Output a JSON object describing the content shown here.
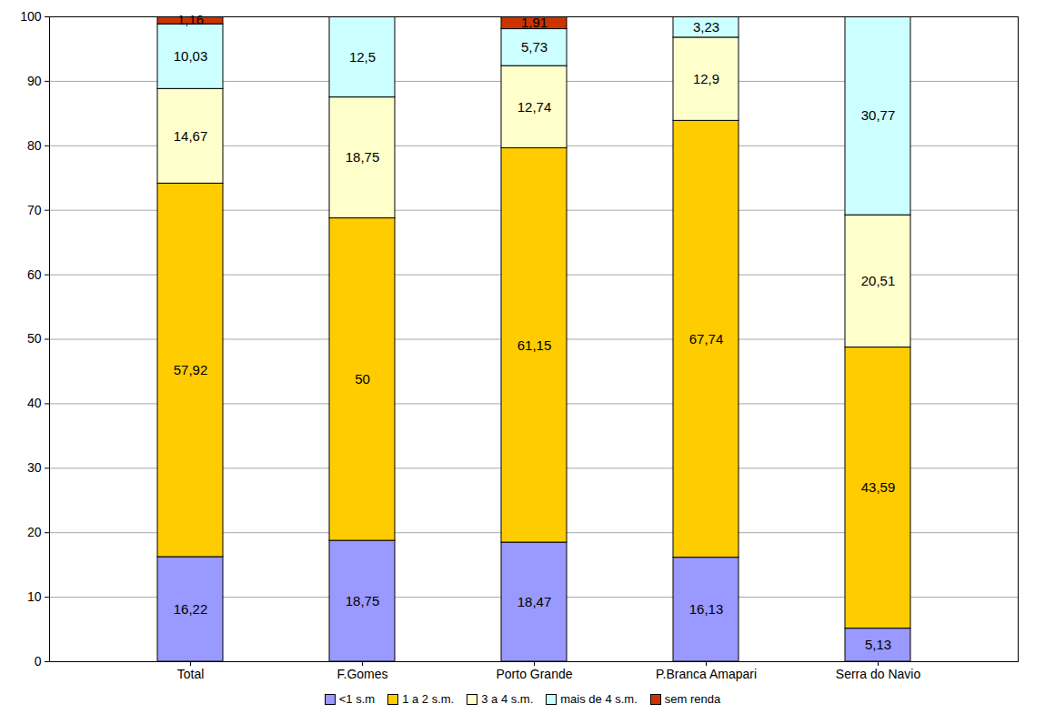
{
  "chart_data": {
    "type": "bar",
    "stacked": true,
    "data_labels": true,
    "grid": true,
    "legend": "bottom",
    "categories": [
      "Total",
      "F.Gomes",
      "Porto Grande",
      "P.Branca Amapari",
      "Serra do Navio"
    ],
    "ylim": [
      0,
      100
    ],
    "yticks": [
      0,
      10,
      20,
      30,
      40,
      50,
      60,
      70,
      80,
      90,
      100
    ],
    "series": [
      {
        "name": "<1 s.m",
        "color": "#9999ff",
        "values": [
          16.22,
          18.75,
          18.47,
          16.13,
          5.13
        ],
        "value_labels": [
          "16,22",
          "18,75",
          "18,47",
          "16,13",
          "5,13"
        ]
      },
      {
        "name": "1 a 2 s.m.",
        "color": "#ffcc00",
        "values": [
          57.92,
          50,
          61.15,
          67.74,
          43.59
        ],
        "value_labels": [
          "57,92",
          "50",
          "61,15",
          "67,74",
          "43,59"
        ]
      },
      {
        "name": "3 a 4 s.m.",
        "color": "#ffffcc",
        "values": [
          14.67,
          18.75,
          12.74,
          12.9,
          20.51
        ],
        "value_labels": [
          "14,67",
          "18,75",
          "12,74",
          "12,9",
          "20,51"
        ]
      },
      {
        "name": "mais de 4 s.m.",
        "color": "#ccffff",
        "values": [
          10.03,
          12.5,
          5.73,
          3.23,
          30.77
        ],
        "value_labels": [
          "10,03",
          "12,5",
          "5,73",
          "3,23",
          "30,77"
        ]
      },
      {
        "name": "sem renda",
        "color": "#cc3300",
        "values": [
          1.16,
          null,
          1.91,
          null,
          null
        ],
        "value_labels": [
          "1,16",
          null,
          "1,91",
          null,
          null
        ]
      }
    ]
  }
}
